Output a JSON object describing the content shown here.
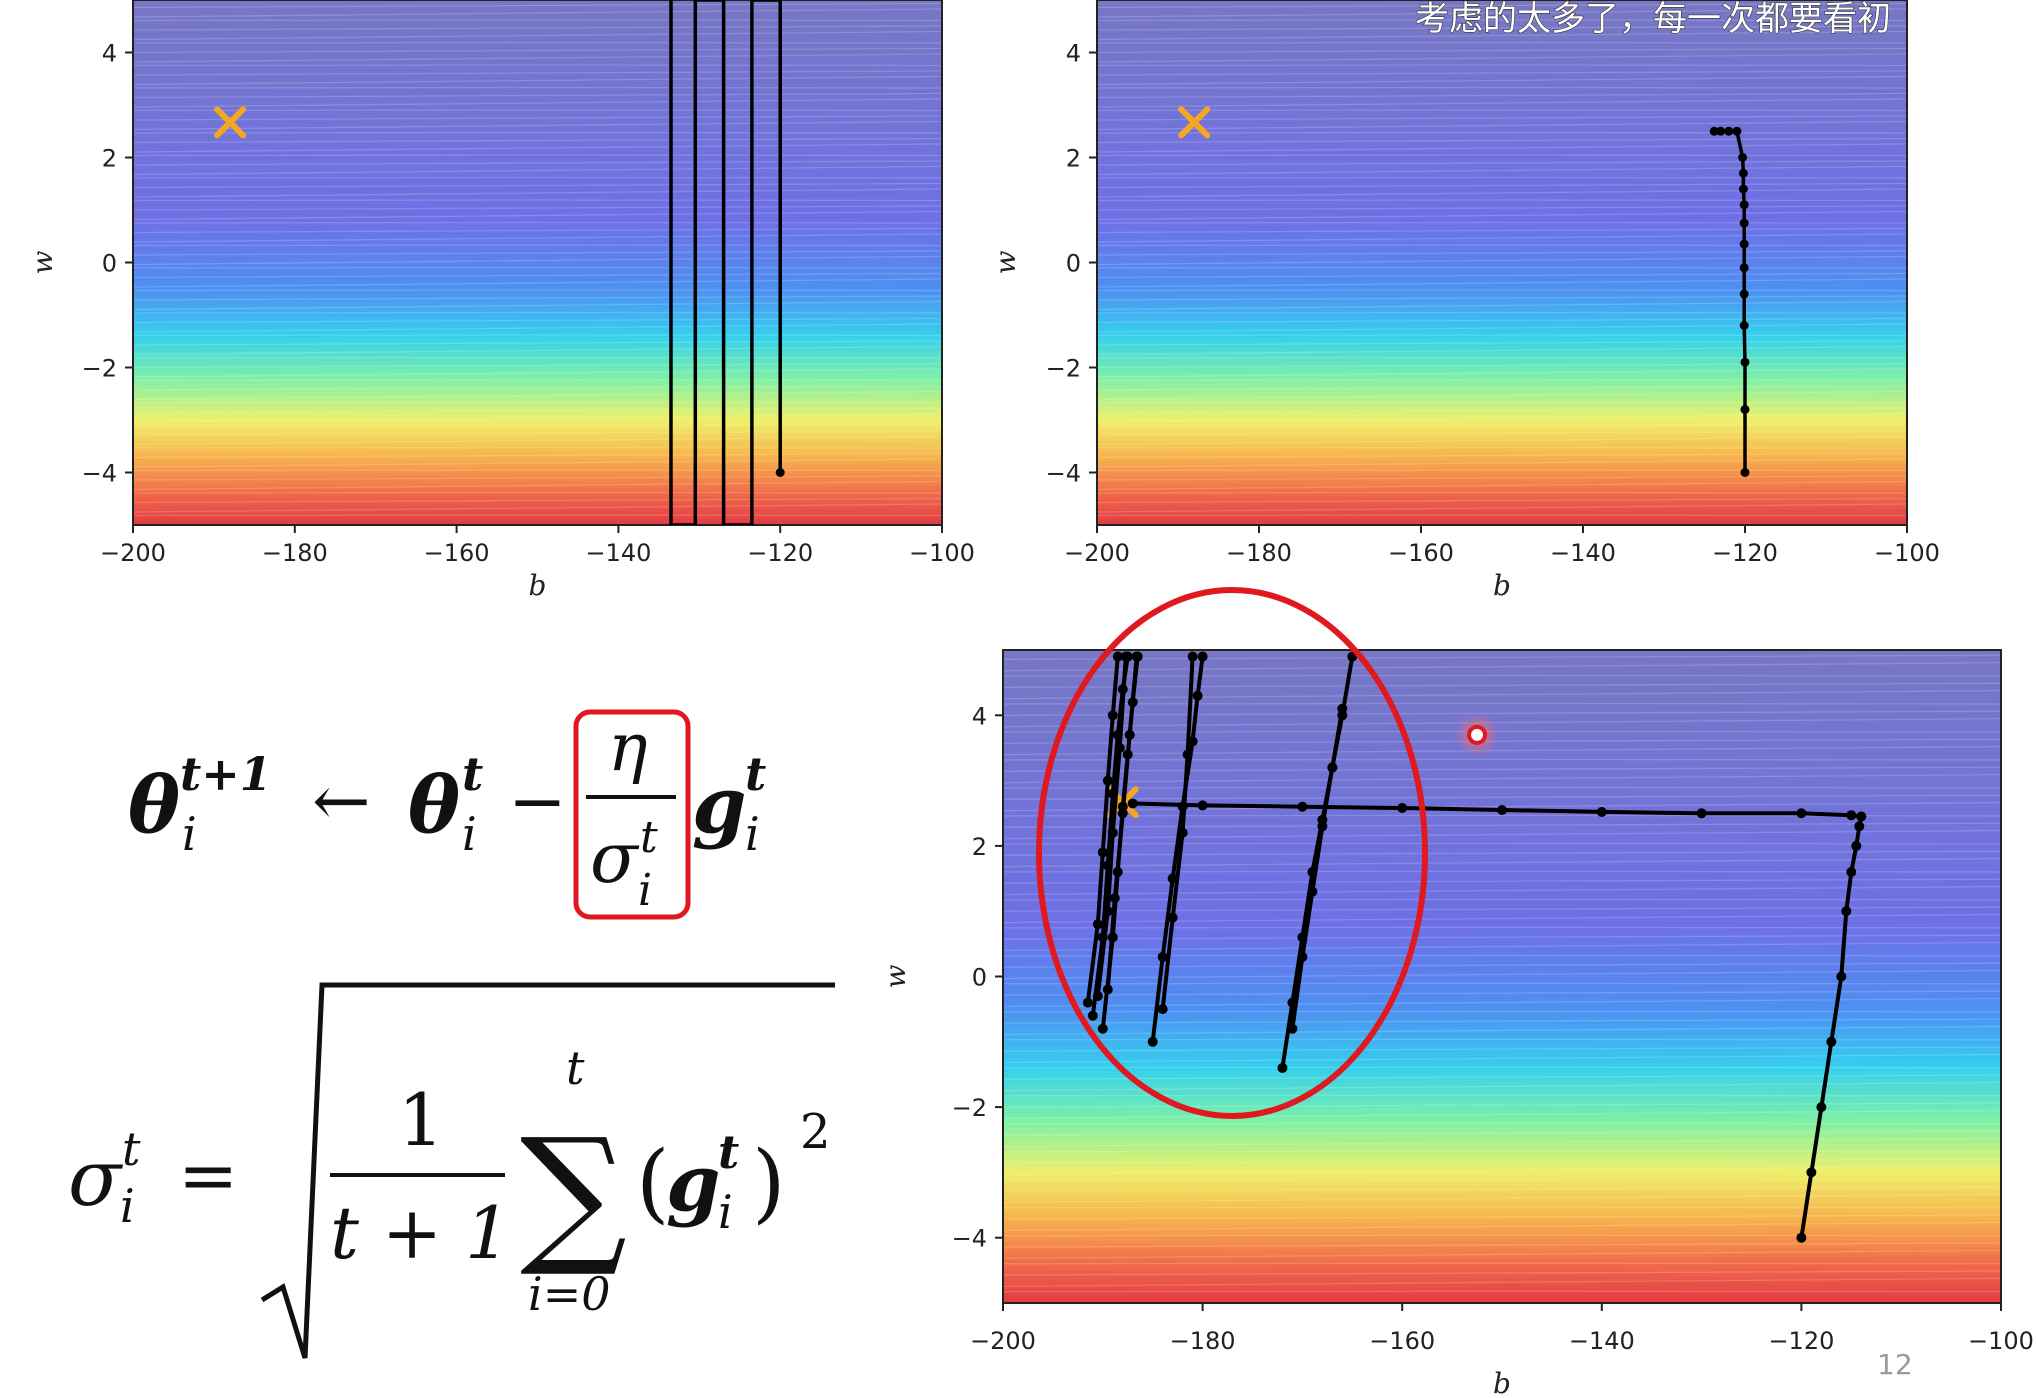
{
  "subtitle": "考虑的太多了，每一次都要看初",
  "page_number": "12",
  "formula": {
    "update": {
      "theta_sup": "t+1",
      "theta_sub": "i",
      "arrow": "←",
      "theta2_sup": "t",
      "theta2_sub": "i",
      "minus": "−",
      "eta": "η",
      "sigma_sup": "t",
      "sigma_sub": "i",
      "g_sup": "t",
      "g_sub": "i"
    },
    "sigma_def": {
      "sigma_sup": "t",
      "sigma_sub": "i",
      "equals": "=",
      "numerator": "1",
      "denominator": "t + 1",
      "sum_upper": "t",
      "sum_lower": "i=0",
      "g_sup": "t",
      "g_sub": "i",
      "power": "2"
    }
  },
  "colors": {
    "highlight_red": "#e0181f",
    "target_marker": "#f5a623",
    "path": "#000000"
  },
  "chart_data": [
    {
      "type": "line",
      "xlabel": "b",
      "ylabel": "w",
      "xlim": [
        -200,
        -100
      ],
      "ylim": [
        -5,
        5
      ],
      "xticks": [
        -200,
        -180,
        -160,
        -140,
        -120,
        -100
      ],
      "yticks": [
        -4,
        -2,
        0,
        2,
        4
      ],
      "background": "contour",
      "target": {
        "x": -188,
        "y": 2.67
      },
      "series": [
        {
          "x": [
            -120,
            -120,
            -123.5,
            -123.5,
            -127,
            -127,
            -130.5,
            -130.5,
            -133.5,
            -133.5
          ],
          "y": [
            -4,
            5,
            5,
            -5,
            -5,
            5,
            5,
            -5,
            -5,
            5
          ],
          "markers": false
        }
      ]
    },
    {
      "type": "line",
      "xlabel": "b",
      "ylabel": "w",
      "xlim": [
        -200,
        -100
      ],
      "ylim": [
        -5,
        5
      ],
      "xticks": [
        -200,
        -180,
        -160,
        -140,
        -120,
        -100
      ],
      "yticks": [
        -4,
        -2,
        0,
        2,
        4
      ],
      "background": "contour",
      "target": {
        "x": -188,
        "y": 2.67
      },
      "series": [
        {
          "x": [
            -120,
            -120,
            -120,
            -120.1,
            -120.1,
            -120.1,
            -120.1,
            -120.1,
            -120.1,
            -120.2,
            -120.2,
            -120.3,
            -121,
            -122,
            -123,
            -123.8
          ],
          "y": [
            -4,
            -2.8,
            -1.9,
            -1.2,
            -0.6,
            -0.1,
            0.35,
            0.75,
            1.1,
            1.4,
            1.7,
            2.0,
            2.5,
            2.5,
            2.5,
            2.5
          ],
          "markers": true
        }
      ]
    },
    {
      "type": "line",
      "xlabel": "b",
      "ylabel": "w",
      "xlim": [
        -200,
        -100
      ],
      "ylim": [
        -5,
        5
      ],
      "xticks": [
        -200,
        -180,
        -160,
        -140,
        -120,
        -100
      ],
      "yticks": [
        -4,
        -2,
        0,
        2,
        4
      ],
      "background": "contour",
      "target": {
        "x": -188,
        "y": 2.67
      },
      "highlight_point": {
        "x": -152.5,
        "y": 3.7
      },
      "series": [
        {
          "name_hidden": true,
          "x": [
            -120,
            -119,
            -118,
            -117,
            -116,
            -115.5,
            -115,
            -114.5,
            -114.2,
            -114,
            -115,
            -120,
            -130,
            -140,
            -150,
            -160,
            -170,
            -180,
            -187
          ],
          "y": [
            -4,
            -3,
            -2,
            -1,
            0,
            1,
            1.6,
            2.0,
            2.3,
            2.45,
            2.47,
            2.5,
            2.5,
            2.52,
            2.55,
            2.58,
            2.6,
            2.62,
            2.65
          ],
          "markers": true
        },
        {
          "x": [
            -172,
            -171,
            -170,
            -169,
            -168,
            -167,
            -166,
            -165
          ],
          "y": [
            -1.4,
            -0.4,
            0.6,
            1.6,
            2.4,
            3.2,
            4.0,
            4.9
          ],
          "markers": true
        },
        {
          "x": [
            -171,
            -170,
            -169,
            -168,
            -167,
            -166
          ],
          "y": [
            -0.8,
            0.3,
            1.3,
            2.3,
            3.2,
            4.1
          ],
          "markers": true
        },
        {
          "x": [
            -185,
            -184,
            -183,
            -182,
            -181,
            -180.5,
            -180
          ],
          "y": [
            -1.0,
            0.3,
            1.5,
            2.6,
            3.6,
            4.3,
            4.9
          ],
          "markers": true
        },
        {
          "x": [
            -184,
            -183,
            -182,
            -181.5,
            -181
          ],
          "y": [
            -0.5,
            0.9,
            2.2,
            3.4,
            4.9
          ],
          "markers": true
        },
        {
          "x": [
            -190,
            -189,
            -188.5,
            -188,
            -187.5,
            -187,
            -186.5
          ],
          "y": [
            -0.8,
            0.6,
            1.6,
            2.6,
            3.4,
            4.2,
            4.9
          ],
          "markers": true
        },
        {
          "x": [
            -191,
            -190,
            -189.5,
            -189,
            -188.5,
            -188,
            -187.5
          ],
          "y": [
            -0.6,
            0.6,
            1.7,
            2.8,
            3.7,
            4.4,
            4.9
          ],
          "markers": true
        },
        {
          "x": [
            -191.5,
            -190.5,
            -190,
            -189.5,
            -189,
            -188.5
          ],
          "y": [
            -0.4,
            0.8,
            1.9,
            3.0,
            4.0,
            4.9
          ],
          "markers": true
        },
        {
          "x": [
            -190.5,
            -189.5,
            -189,
            -188.3,
            -187.7
          ],
          "y": [
            -0.3,
            1.0,
            2.2,
            3.5,
            4.9
          ],
          "markers": true
        },
        {
          "x": [
            -189.5,
            -188.8,
            -188,
            -187.3,
            -186.6
          ],
          "y": [
            -0.2,
            1.2,
            2.5,
            3.7,
            4.9
          ],
          "markers": true
        }
      ]
    }
  ]
}
